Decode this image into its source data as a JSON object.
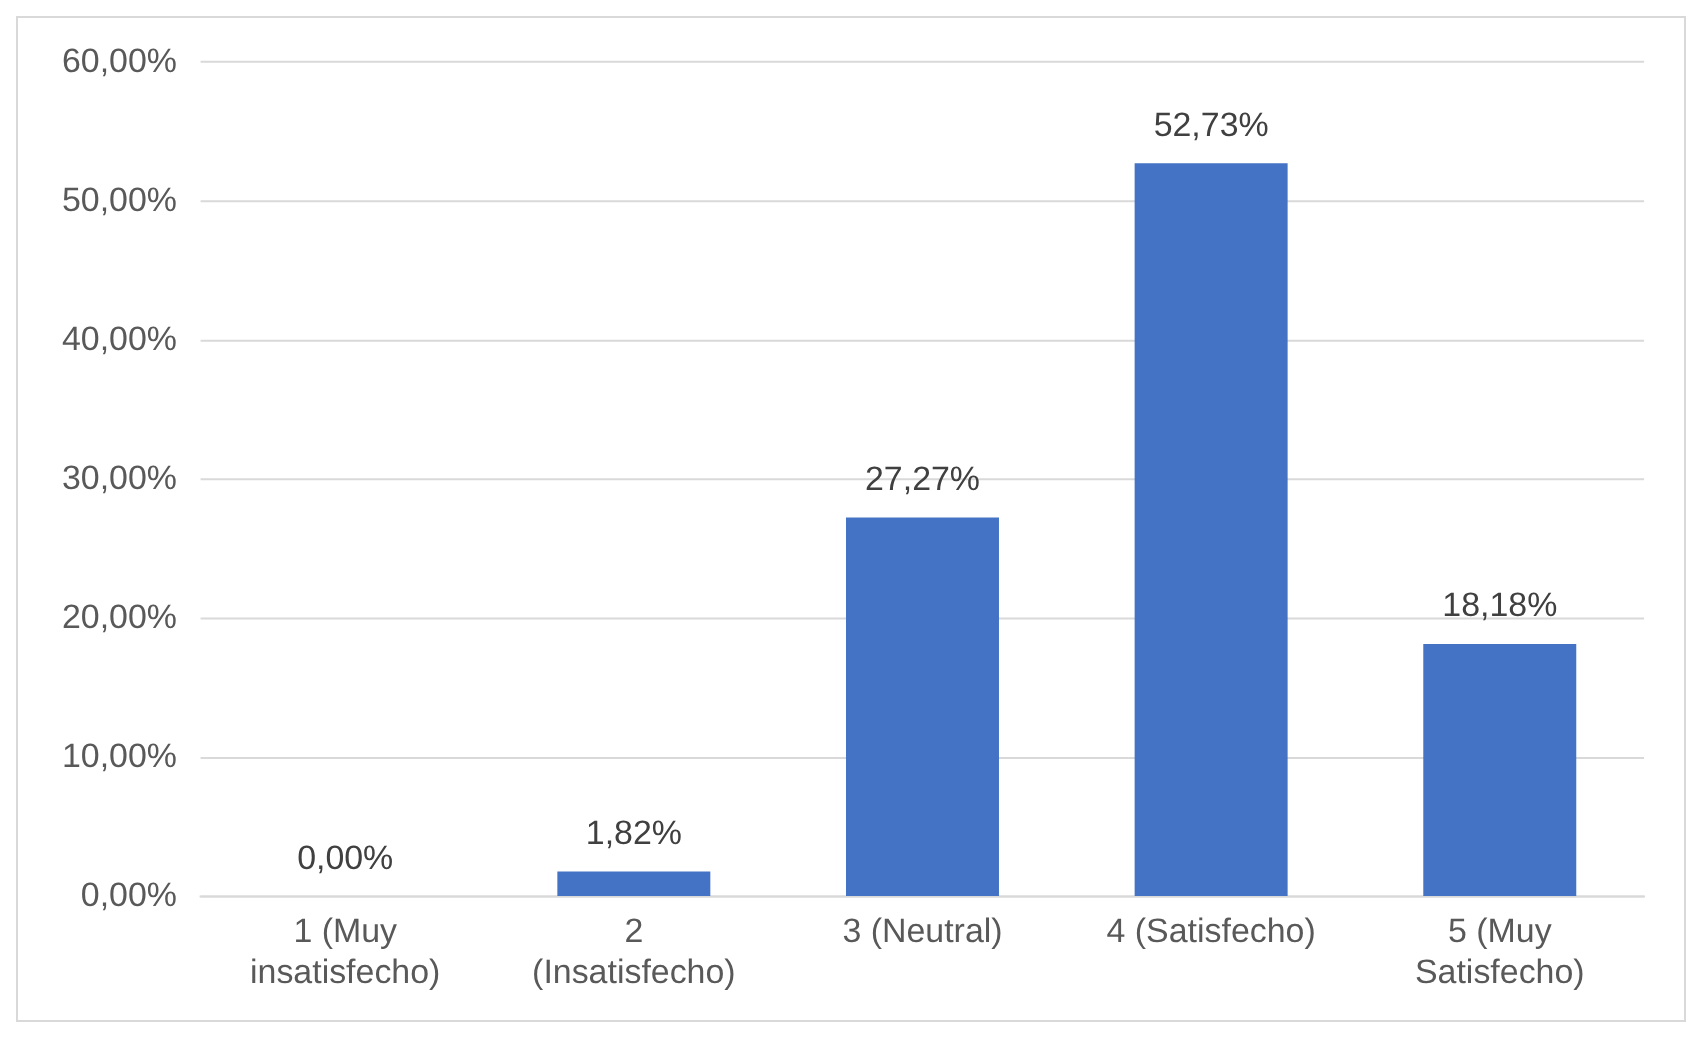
{
  "chart_data": {
    "type": "bar",
    "categories": [
      "1 (Muy insatisfecho)",
      "2 (Insatisfecho)",
      "3 (Neutral)",
      "4 (Satisfecho)",
      "5 (Muy Satisfecho)"
    ],
    "values": [
      0,
      1.82,
      27.27,
      52.73,
      18.18
    ],
    "value_labels": [
      "0,00%",
      "1,82%",
      "27,27%",
      "52,73%",
      "18,18%"
    ],
    "color": "#4472c4",
    "ylim": [
      0,
      60
    ],
    "yticks": [
      {
        "value": 0,
        "label": "0,00%"
      },
      {
        "value": 10,
        "label": "10,00%"
      },
      {
        "value": 20,
        "label": "20,00%"
      },
      {
        "value": 30,
        "label": "30,00%"
      },
      {
        "value": 40,
        "label": "40,00%"
      },
      {
        "value": 50,
        "label": "50,00%"
      },
      {
        "value": 60,
        "label": "60,00%"
      }
    ],
    "grid": "y",
    "legend": false
  }
}
